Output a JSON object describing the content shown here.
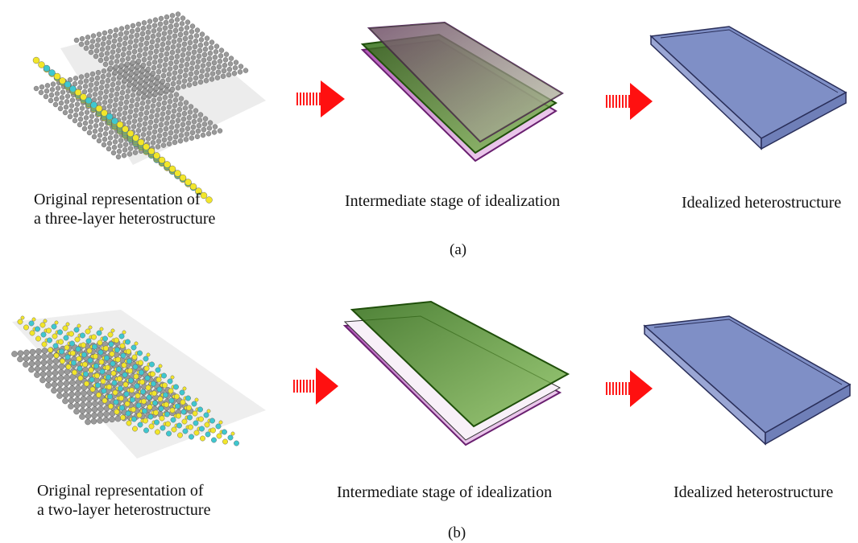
{
  "panel_a": {
    "label": "(a)",
    "col1_caption_line1": "Original representation of",
    "col1_caption_line2": "a three-layer heterostructure",
    "col2_caption": "Intermediate stage of idealization",
    "col3_caption": "Idealized heterostructure"
  },
  "panel_b": {
    "label": "(b)",
    "col1_caption_line1": "Original representation of",
    "col1_caption_line2": "a two-layer heterostructure",
    "col2_caption": "Intermediate stage of idealization",
    "col3_caption": "Idealized heterostructure"
  },
  "colors": {
    "arrow": "#ff1010",
    "carbon": "#9a9a9a",
    "sulfur": "#f2e62a",
    "metal": "#3fc7cf",
    "green_layer": "#3f8a1e",
    "magenta_layer": "#c050c8",
    "blue_slab": "#8091c8"
  }
}
